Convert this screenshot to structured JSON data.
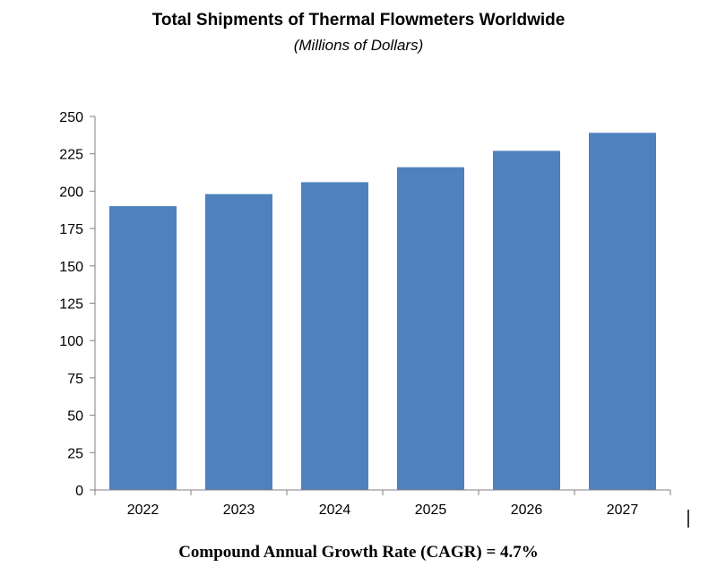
{
  "chart_data": {
    "type": "bar",
    "title": "Total Shipments of Thermal Flowmeters Worldwide",
    "subtitle": "(Millions of Dollars)",
    "categories": [
      "2022",
      "2023",
      "2024",
      "2025",
      "2026",
      "2027"
    ],
    "values": [
      190,
      198,
      206,
      216,
      227,
      239
    ],
    "ylim": [
      0,
      250
    ],
    "yticks": [
      "0",
      "25",
      "50",
      "75",
      "100",
      "125",
      "150",
      "175",
      "200",
      "225",
      "250"
    ],
    "grid": false,
    "legend": "none",
    "bar_color": "#4F81BD"
  },
  "footnote": "Compound Annual Growth Rate (CAGR) = 4.7%"
}
